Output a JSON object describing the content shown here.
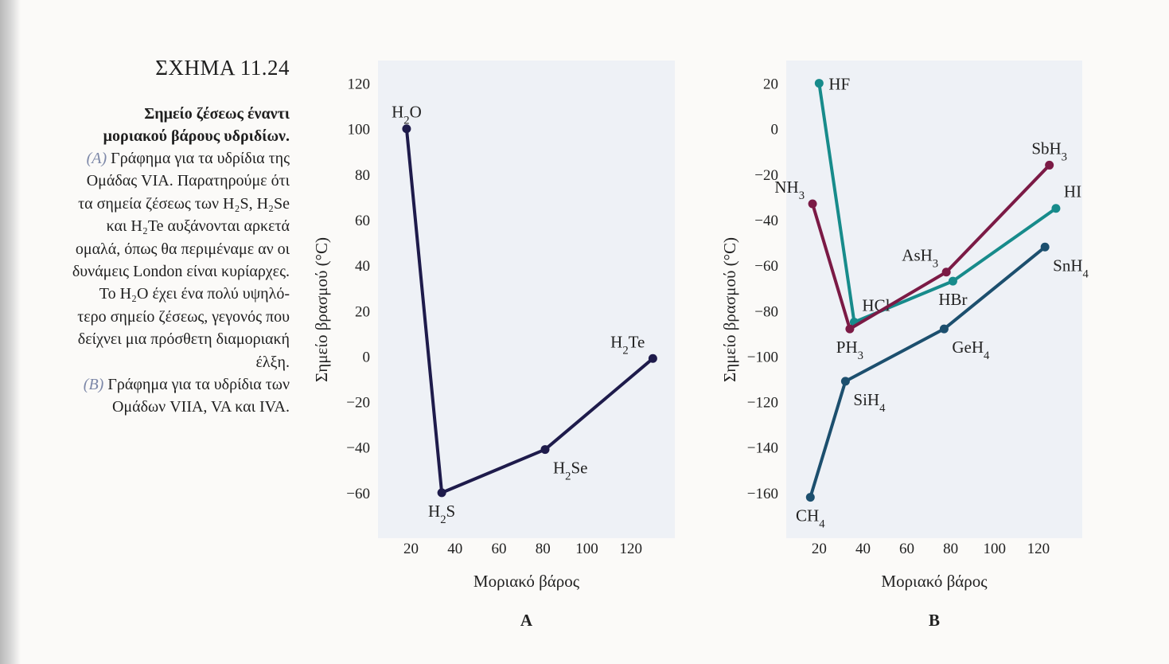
{
  "caption": {
    "title": "ΣΧΗΜΑ 11.24",
    "subtitle_lines": [
      "Σημείο ζέσεως έναντι",
      "μοριακού βάρους υδριδίων."
    ],
    "para_a_tag": "(A)",
    "para_a_lines": [
      "Γράφημα για τα υδρίδια της",
      "Ομάδας VIA. Παρατηρούμε ότι",
      "τα σημεία ζέσεως των H₂S, H₂Se",
      "και H₂Te αυξάνονται αρκετά",
      "ομαλά, όπως θα περιμέναμε αν οι",
      "δυνάμεις London είναι κυρίαρχες.",
      "Το H₂O έχει ένα πολύ υψηλό-",
      "τερο σημείο ζέσεως, γεγονός που",
      "δείχνει μια πρόσθετη διαμοριακή",
      "έλξη."
    ],
    "para_b_tag": "(B)",
    "para_b_lines": [
      "Γράφημα για τα υδρίδια των",
      "Ομάδων VIIA, VA και IVA."
    ]
  },
  "chart_data": [
    {
      "panel_label": "A",
      "type": "line",
      "xlabel": "Μοριακό βάρος",
      "ylabel": "Σημείο βρασμού (°C)",
      "xlim": [
        5,
        140
      ],
      "ylim": [
        -80,
        130
      ],
      "xticks": [
        20,
        40,
        60,
        80,
        100,
        120
      ],
      "yticks": [
        -60,
        -40,
        -20,
        0,
        20,
        40,
        60,
        80,
        100,
        120
      ],
      "grid": false,
      "series": [
        {
          "color": "#1e1b4b",
          "points": [
            {
              "x": 18,
              "y": 100,
              "label": "H₂O",
              "label_pos": "above"
            },
            {
              "x": 34,
              "y": -60,
              "label": "H₂S",
              "label_pos": "below"
            },
            {
              "x": 81,
              "y": -41,
              "label": "H₂Se",
              "label_pos": "below-right"
            },
            {
              "x": 130,
              "y": -1,
              "label": "H₂Te",
              "label_pos": "above-left"
            }
          ]
        }
      ]
    },
    {
      "panel_label": "B",
      "type": "line",
      "xlabel": "Μοριακό βάρος",
      "ylabel": "Σημείο βρασμού (°C)",
      "xlim": [
        5,
        140
      ],
      "ylim": [
        -180,
        30
      ],
      "xticks": [
        20,
        40,
        60,
        80,
        100,
        120
      ],
      "yticks": [
        -160,
        -140,
        -120,
        -100,
        -80,
        -60,
        -40,
        -20,
        0,
        20
      ],
      "grid": false,
      "series": [
        {
          "color": "#178b8b",
          "points": [
            {
              "x": 20,
              "y": 20,
              "label": "HF",
              "label_pos": "right"
            },
            {
              "x": 36,
              "y": -85,
              "label": "HCl",
              "label_pos": "above-right"
            },
            {
              "x": 81,
              "y": -67,
              "label": "HBr",
              "label_pos": "below"
            },
            {
              "x": 128,
              "y": -35,
              "label": "HI",
              "label_pos": "above-right"
            }
          ]
        },
        {
          "color": "#7b1a45",
          "points": [
            {
              "x": 17,
              "y": -33,
              "label": "NH₃",
              "label_pos": "above-left"
            },
            {
              "x": 34,
              "y": -88,
              "label": "PH₃",
              "label_pos": "below"
            },
            {
              "x": 78,
              "y": -63,
              "label": "AsH₃",
              "label_pos": "above-left"
            },
            {
              "x": 125,
              "y": -16,
              "label": "SbH₃",
              "label_pos": "above"
            }
          ]
        },
        {
          "color": "#1c4f6e",
          "points": [
            {
              "x": 16,
              "y": -162,
              "label": "CH₄",
              "label_pos": "below"
            },
            {
              "x": 32,
              "y": -111,
              "label": "SiH₄",
              "label_pos": "below-right"
            },
            {
              "x": 77,
              "y": -88,
              "label": "GeH₄",
              "label_pos": "below-right"
            },
            {
              "x": 123,
              "y": -52,
              "label": "SnH₄",
              "label_pos": "below-right"
            }
          ]
        }
      ]
    }
  ]
}
